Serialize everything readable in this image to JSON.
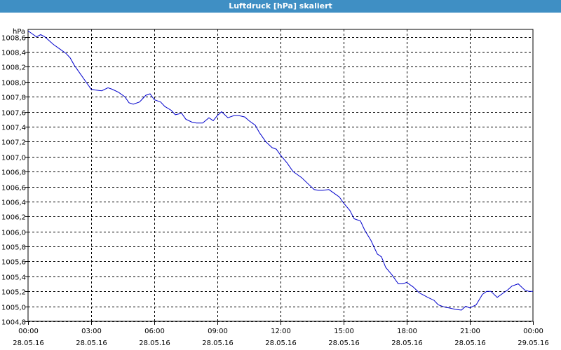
{
  "window": {
    "title": "Luftdruck [hPa] skaliert"
  },
  "colors": {
    "title_bar": "#3f8fc4",
    "series_line": "#0000cc",
    "grid": "#000000"
  },
  "chart_data": {
    "type": "line",
    "title": "Luftdruck [hPa] skaliert",
    "ylabel": "hPa",
    "xlabel": "",
    "ylim": [
      1004.8,
      1008.7
    ],
    "xlim": [
      0,
      24
    ],
    "grid": true,
    "y_ticks": [
      1004.8,
      1005.0,
      1005.2,
      1005.4,
      1005.6,
      1005.8,
      1006.0,
      1006.2,
      1006.4,
      1006.6,
      1006.8,
      1007.0,
      1007.2,
      1007.4,
      1007.6,
      1007.8,
      1008.0,
      1008.2,
      1008.4,
      1008.6
    ],
    "y_tick_labels": [
      "1004,8",
      "1005,0",
      "1005,2",
      "1005,4",
      "1005,6",
      "1005,8",
      "1006,0",
      "1006,2",
      "1006,4",
      "1006,6",
      "1006,8",
      "1007,0",
      "1007,2",
      "1007,4",
      "1007,6",
      "1007,8",
      "1008,0",
      "1008,2",
      "1008,4",
      "1008,6"
    ],
    "x_ticks": [
      0,
      3,
      6,
      9,
      12,
      15,
      18,
      21,
      24
    ],
    "x_tick_times": [
      "00:00",
      "03:00",
      "06:00",
      "09:00",
      "12:00",
      "15:00",
      "18:00",
      "21:00",
      "00:00"
    ],
    "x_tick_dates": [
      "28.05.16",
      "28.05.16",
      "28.05.16",
      "28.05.16",
      "28.05.16",
      "28.05.16",
      "28.05.16",
      "28.05.16",
      "29.05.16"
    ],
    "series": [
      {
        "x": [
          0.0,
          0.2,
          0.4,
          0.6,
          0.8,
          1.0,
          1.2,
          1.5,
          1.8,
          2.0,
          2.2,
          2.5,
          2.8,
          3.0,
          3.2,
          3.5,
          3.8,
          4.0,
          4.3,
          4.6,
          4.8,
          5.0,
          5.3,
          5.6,
          5.8,
          6.0,
          6.3,
          6.5,
          6.8,
          7.0,
          7.3,
          7.5,
          7.8,
          8.0,
          8.3,
          8.6,
          8.8,
          9.0,
          9.2,
          9.5,
          9.8,
          10.0,
          10.3,
          10.5,
          10.8,
          11.0,
          11.3,
          11.6,
          11.8,
          12.0,
          12.3,
          12.6,
          12.8,
          13.0,
          13.3,
          13.6,
          13.8,
          14.0,
          14.3,
          14.6,
          14.8,
          15.0,
          15.3,
          15.5,
          15.8,
          16.0,
          16.3,
          16.6,
          16.8,
          17.0,
          17.3,
          17.6,
          17.8,
          18.0,
          18.3,
          18.6,
          18.8,
          19.0,
          19.3,
          19.5,
          19.8,
          20.0,
          20.3,
          20.6,
          20.8,
          21.0,
          21.3,
          21.6,
          21.8,
          22.0,
          22.3,
          22.6,
          22.8,
          23.0,
          23.3,
          23.6,
          23.8,
          24.0
        ],
        "values": [
          1008.68,
          1008.64,
          1008.6,
          1008.63,
          1008.6,
          1008.55,
          1008.5,
          1008.44,
          1008.38,
          1008.32,
          1008.22,
          1008.1,
          1007.98,
          1007.9,
          1007.89,
          1007.88,
          1007.92,
          1007.9,
          1007.86,
          1007.8,
          1007.72,
          1007.7,
          1007.73,
          1007.82,
          1007.84,
          1007.76,
          1007.73,
          1007.67,
          1007.62,
          1007.56,
          1007.58,
          1007.5,
          1007.46,
          1007.45,
          1007.45,
          1007.52,
          1007.48,
          1007.55,
          1007.6,
          1007.52,
          1007.55,
          1007.55,
          1007.53,
          1007.48,
          1007.42,
          1007.32,
          1007.2,
          1007.12,
          1007.1,
          1007.02,
          1006.92,
          1006.8,
          1006.76,
          1006.72,
          1006.64,
          1006.56,
          1006.55,
          1006.55,
          1006.56,
          1006.5,
          1006.46,
          1006.38,
          1006.28,
          1006.17,
          1006.14,
          1006.02,
          1005.88,
          1005.7,
          1005.66,
          1005.52,
          1005.42,
          1005.3,
          1005.3,
          1005.32,
          1005.26,
          1005.18,
          1005.15,
          1005.12,
          1005.08,
          1005.02,
          1004.99,
          1004.98,
          1004.96,
          1004.95,
          1005.0,
          1004.98,
          1005.02,
          1005.16,
          1005.2,
          1005.2,
          1005.12,
          1005.18,
          1005.22,
          1005.27,
          1005.3,
          1005.22,
          1005.2,
          1005.2
        ]
      }
    ]
  }
}
